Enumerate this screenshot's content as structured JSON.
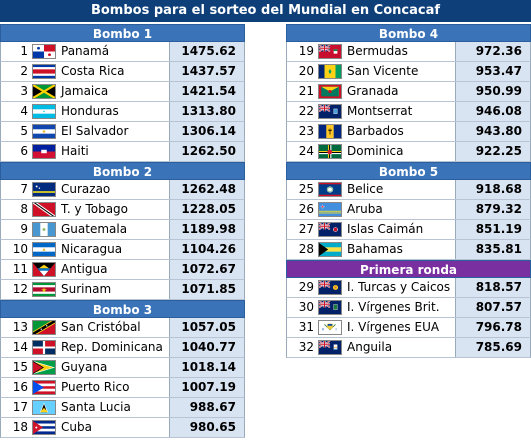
{
  "title": "Bombos para el sorteo del Mundial en Concacaf",
  "left_groups": [
    {
      "name": "Bombo 1",
      "color": "#3a73b8",
      "rows": [
        {
          "num": "1",
          "flag": "panama-flag-icon",
          "country": "Panamá",
          "score": "1475.62"
        },
        {
          "num": "2",
          "flag": "costa-rica-flag-icon",
          "country": "Costa Rica",
          "score": "1437.57"
        },
        {
          "num": "3",
          "flag": "jamaica-flag-icon",
          "country": "Jamaica",
          "score": "1421.54"
        },
        {
          "num": "4",
          "flag": "honduras-flag-icon",
          "country": "Honduras",
          "score": "1313.80"
        },
        {
          "num": "5",
          "flag": "el-salvador-flag-icon",
          "country": "El Salvador",
          "score": "1306.14"
        },
        {
          "num": "6",
          "flag": "haiti-flag-icon",
          "country": "Haiti",
          "score": "1262.50"
        }
      ]
    },
    {
      "name": "Bombo 2",
      "color": "#3a73b8",
      "rows": [
        {
          "num": "7",
          "flag": "curazao-flag-icon",
          "country": "Curazao",
          "score": "1262.48"
        },
        {
          "num": "8",
          "flag": "trinidad-tobago-flag-icon",
          "country": "T. y Tobago",
          "score": "1228.05"
        },
        {
          "num": "9",
          "flag": "guatemala-flag-icon",
          "country": "Guatemala",
          "score": "1189.98"
        },
        {
          "num": "10",
          "flag": "nicaragua-flag-icon",
          "country": "Nicaragua",
          "score": "1104.26"
        },
        {
          "num": "11",
          "flag": "antigua-flag-icon",
          "country": "Antigua",
          "score": "1072.67"
        },
        {
          "num": "12",
          "flag": "surinam-flag-icon",
          "country": "Surinam",
          "score": "1071.85"
        }
      ]
    },
    {
      "name": "Bombo 3",
      "color": "#3a73b8",
      "rows": [
        {
          "num": "13",
          "flag": "san-cristobal-flag-icon",
          "country": "San Cristóbal",
          "score": "1057.05"
        },
        {
          "num": "14",
          "flag": "rep-dominicana-flag-icon",
          "country": "Rep. Dominicana",
          "score": "1040.77"
        },
        {
          "num": "15",
          "flag": "guyana-flag-icon",
          "country": "Guyana",
          "score": "1018.14"
        },
        {
          "num": "16",
          "flag": "puerto-rico-flag-icon",
          "country": "Puerto Rico",
          "score": "1007.19"
        },
        {
          "num": "17",
          "flag": "santa-lucia-flag-icon",
          "country": "Santa Lucia",
          "score": "988.67"
        },
        {
          "num": "18",
          "flag": "cuba-flag-icon",
          "country": "Cuba",
          "score": "980.65"
        }
      ]
    }
  ],
  "right_groups": [
    {
      "name": "Bombo 4",
      "color": "#3a73b8",
      "rows": [
        {
          "num": "19",
          "flag": "bermudas-flag-icon",
          "country": "Bermudas",
          "score": "972.36"
        },
        {
          "num": "20",
          "flag": "san-vicente-flag-icon",
          "country": "San Vicente",
          "score": "953.47"
        },
        {
          "num": "21",
          "flag": "granada-flag-icon",
          "country": "Granada",
          "score": "950.99"
        },
        {
          "num": "22",
          "flag": "montserrat-flag-icon",
          "country": "Montserrat",
          "score": "946.08"
        },
        {
          "num": "23",
          "flag": "barbados-flag-icon",
          "country": "Barbados",
          "score": "943.80"
        },
        {
          "num": "24",
          "flag": "dominica-flag-icon",
          "country": "Dominica",
          "score": "922.25"
        }
      ]
    },
    {
      "name": "Bombo 5",
      "color": "#3a73b8",
      "rows": [
        {
          "num": "25",
          "flag": "belice-flag-icon",
          "country": "Belice",
          "score": "918.68"
        },
        {
          "num": "26",
          "flag": "aruba-flag-icon",
          "country": "Aruba",
          "score": "879.32"
        },
        {
          "num": "27",
          "flag": "islas-caiman-flag-icon",
          "country": "Islas Caimán",
          "score": "851.19"
        },
        {
          "num": "28",
          "flag": "bahamas-flag-icon",
          "country": "Bahamas",
          "score": "835.81"
        }
      ]
    },
    {
      "name": "Primera ronda",
      "color": "#7a2fa0",
      "rows": [
        {
          "num": "29",
          "flag": "turcas-caicos-flag-icon",
          "country": "I. Turcas y Caicos",
          "score": "818.57"
        },
        {
          "num": "30",
          "flag": "virgenes-brit-flag-icon",
          "country": "I. Vírgenes Brit.",
          "score": "807.57"
        },
        {
          "num": "31",
          "flag": "virgenes-eua-flag-icon",
          "country": "I. Vírgenes EUA",
          "score": "796.78"
        },
        {
          "num": "32",
          "flag": "anguila-flag-icon",
          "country": "Anguila",
          "score": "785.69"
        }
      ]
    }
  ]
}
